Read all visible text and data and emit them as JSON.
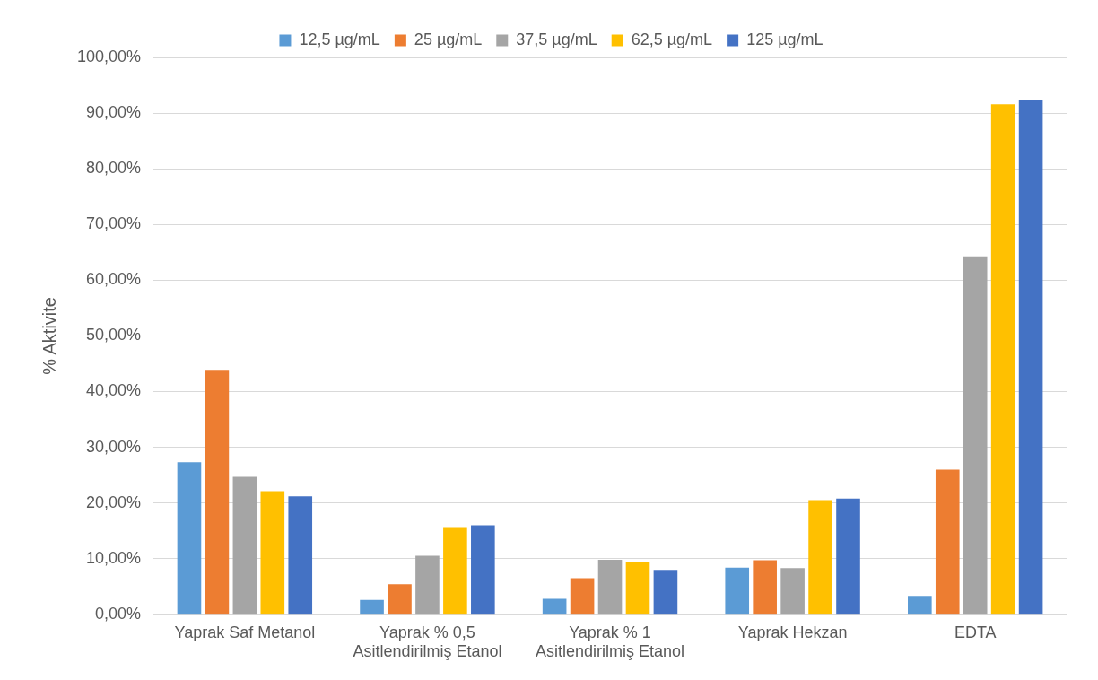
{
  "chart_data": {
    "type": "bar",
    "ylabel": "% Aktivite",
    "categories": [
      "Yaprak Saf Metanol",
      "Yaprak % 0,5 Asitlendirilmiş Etanol",
      "Yaprak % 1 Asitlendirilmiş Etanol",
      "Yaprak Hekzan",
      "EDTA"
    ],
    "series": [
      {
        "name": "12,5 µg/mL",
        "color": "#5b9bd5",
        "values": [
          27.3,
          2.6,
          2.8,
          8.4,
          3.3
        ]
      },
      {
        "name": "25 µg/mL",
        "color": "#ed7d31",
        "values": [
          43.9,
          5.4,
          6.5,
          9.7,
          26.0
        ]
      },
      {
        "name": "37,5 µg/mL",
        "color": "#a5a5a5",
        "values": [
          24.7,
          10.5,
          9.8,
          8.3,
          64.3
        ]
      },
      {
        "name": "62,5 µg/mL",
        "color": "#ffc000",
        "values": [
          22.1,
          15.5,
          9.4,
          20.5,
          91.6
        ]
      },
      {
        "name": "125 µg/mL",
        "color": "#4472c4",
        "values": [
          21.2,
          16.0,
          8.0,
          20.8,
          92.4
        ]
      }
    ],
    "ylim": [
      0,
      100
    ],
    "yticks": [
      {
        "value": 0,
        "label": "0,00%"
      },
      {
        "value": 10,
        "label": "10,00%"
      },
      {
        "value": 20,
        "label": "20,00%"
      },
      {
        "value": 30,
        "label": "30,00%"
      },
      {
        "value": 40,
        "label": "40,00%"
      },
      {
        "value": 50,
        "label": "50,00%"
      },
      {
        "value": 60,
        "label": "60,00%"
      },
      {
        "value": 70,
        "label": "70,00%"
      },
      {
        "value": 80,
        "label": "80,00%"
      },
      {
        "value": 90,
        "label": "90,00%"
      },
      {
        "value": 100,
        "label": "100,00%"
      }
    ],
    "grid": "y",
    "legend": "top"
  }
}
